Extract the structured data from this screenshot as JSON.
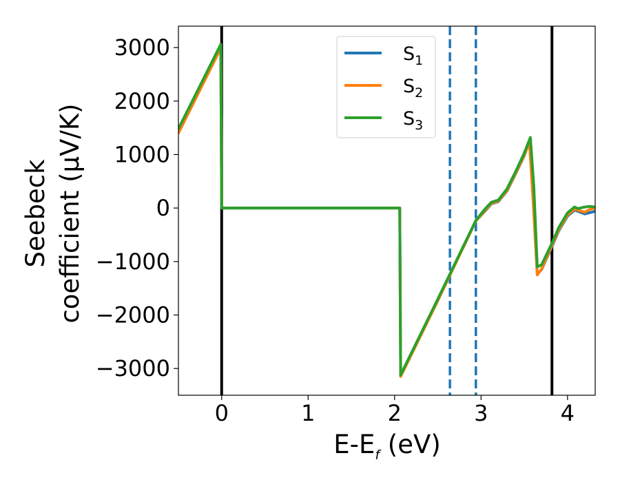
{
  "chart_data": {
    "type": "line",
    "title": "",
    "xlabel_main": "E-E",
    "xlabel_sub": "f",
    "xlabel_unit": " (eV)",
    "ylabel_line1": "Seebeck",
    "ylabel_line2": "coefficient  (μV/K)",
    "xlim": [
      -0.5,
      4.32
    ],
    "ylim": [
      -3500,
      3400
    ],
    "xticks": [
      0,
      1,
      2,
      3,
      4
    ],
    "yticks": [
      3000,
      2000,
      1000,
      0,
      -1000,
      -2000,
      -3000
    ],
    "ytick_labels": [
      "3000",
      "2000",
      "1000",
      "0",
      "−1000",
      "−2000",
      "−3000"
    ],
    "legend": {
      "position": "upper center",
      "entries": [
        {
          "base": "S",
          "sub": "1"
        },
        {
          "base": "S",
          "sub": "2"
        },
        {
          "base": "S",
          "sub": "3"
        }
      ]
    },
    "vertical_lines": [
      {
        "x": 0.0,
        "style": "solid",
        "color": "#000000"
      },
      {
        "x": 3.82,
        "style": "solid",
        "color": "#000000"
      },
      {
        "x": 2.64,
        "style": "dashed",
        "color": "#1f77b4"
      },
      {
        "x": 2.94,
        "style": "dashed",
        "color": "#1f77b4"
      }
    ],
    "series": [
      {
        "name": "S1",
        "color": "#1f77b4",
        "points": [
          [
            -0.5,
            1450
          ],
          [
            -0.01,
            3020
          ],
          [
            0.0,
            0
          ],
          [
            0.5,
            0
          ],
          [
            1.0,
            0
          ],
          [
            1.5,
            0
          ],
          [
            2.06,
            0
          ],
          [
            2.07,
            -3140
          ],
          [
            2.5,
            -1720
          ],
          [
            2.94,
            -240
          ],
          [
            3.05,
            -50
          ],
          [
            3.12,
            80
          ],
          [
            3.2,
            120
          ],
          [
            3.3,
            320
          ],
          [
            3.4,
            640
          ],
          [
            3.5,
            980
          ],
          [
            3.56,
            1250
          ],
          [
            3.6,
            300
          ],
          [
            3.65,
            -1240
          ],
          [
            3.7,
            -1150
          ],
          [
            3.82,
            -720
          ],
          [
            3.9,
            -420
          ],
          [
            4.0,
            -150
          ],
          [
            4.08,
            -40
          ],
          [
            4.12,
            -60
          ],
          [
            4.2,
            -110
          ],
          [
            4.25,
            -90
          ],
          [
            4.32,
            -60
          ]
        ]
      },
      {
        "name": "S2",
        "color": "#ff7f0e",
        "points": [
          [
            -0.5,
            1400
          ],
          [
            -0.01,
            2990
          ],
          [
            0.0,
            0
          ],
          [
            0.5,
            0
          ],
          [
            1.0,
            0
          ],
          [
            1.5,
            0
          ],
          [
            2.06,
            0
          ],
          [
            2.07,
            -3150
          ],
          [
            2.5,
            -1730
          ],
          [
            2.94,
            -240
          ],
          [
            3.05,
            -40
          ],
          [
            3.12,
            90
          ],
          [
            3.2,
            130
          ],
          [
            3.3,
            330
          ],
          [
            3.4,
            650
          ],
          [
            3.5,
            990
          ],
          [
            3.56,
            1230
          ],
          [
            3.6,
            200
          ],
          [
            3.65,
            -1250
          ],
          [
            3.7,
            -1140
          ],
          [
            3.82,
            -700
          ],
          [
            3.9,
            -400
          ],
          [
            4.0,
            -130
          ],
          [
            4.08,
            -20
          ],
          [
            4.12,
            -40
          ],
          [
            4.2,
            -80
          ],
          [
            4.25,
            -30
          ],
          [
            4.32,
            0
          ]
        ]
      },
      {
        "name": "S3",
        "color": "#2ca02c",
        "points": [
          [
            -0.5,
            1480
          ],
          [
            -0.01,
            3060
          ],
          [
            0.0,
            0
          ],
          [
            0.5,
            0
          ],
          [
            1.0,
            0
          ],
          [
            1.5,
            0
          ],
          [
            2.06,
            0
          ],
          [
            2.07,
            -3120
          ],
          [
            2.5,
            -1700
          ],
          [
            2.94,
            -230
          ],
          [
            3.05,
            -10
          ],
          [
            3.12,
            110
          ],
          [
            3.2,
            150
          ],
          [
            3.3,
            360
          ],
          [
            3.4,
            680
          ],
          [
            3.5,
            1030
          ],
          [
            3.57,
            1320
          ],
          [
            3.61,
            400
          ],
          [
            3.65,
            -1100
          ],
          [
            3.7,
            -1060
          ],
          [
            3.82,
            -660
          ],
          [
            3.9,
            -360
          ],
          [
            4.0,
            -90
          ],
          [
            4.08,
            20
          ],
          [
            4.12,
            -10
          ],
          [
            4.2,
            20
          ],
          [
            4.25,
            30
          ],
          [
            4.32,
            20
          ]
        ]
      }
    ]
  }
}
